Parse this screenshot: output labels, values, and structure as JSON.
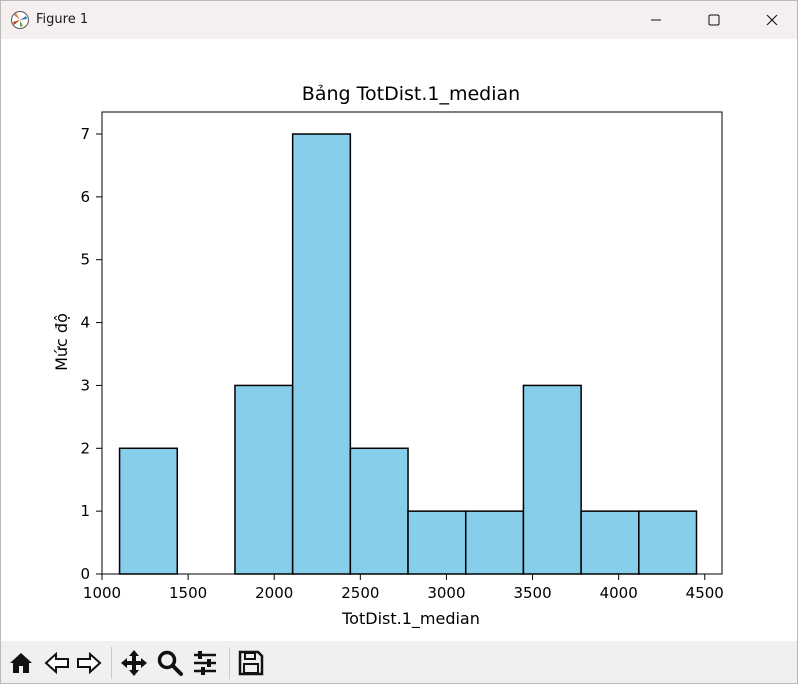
{
  "window": {
    "title": "Figure 1"
  },
  "colors": {
    "bar_fill": "#87ceeb",
    "bar_edge": "#000000",
    "titlebar_bg": "#f6eff0",
    "toolbar_bg": "#f0f0f0"
  },
  "toolbar": {
    "buttons": [
      {
        "name": "home-icon"
      },
      {
        "name": "back-arrow-icon"
      },
      {
        "name": "forward-arrow-icon"
      },
      {
        "name": "pan-move-icon"
      },
      {
        "name": "zoom-magnifier-icon"
      },
      {
        "name": "configure-subplots-icon"
      },
      {
        "name": "save-floppy-icon"
      }
    ]
  },
  "chart_data": {
    "type": "bar",
    "title": "Bảng TotDist.1_median",
    "xlabel": "TotDist.1_median",
    "ylabel": "Mức độ",
    "bin_edges": [
      1102,
      1437,
      1772,
      2107,
      2442,
      2777,
      3112,
      3447,
      3782,
      4117,
      4452
    ],
    "values": [
      2,
      0,
      3,
      7,
      2,
      1,
      1,
      3,
      1,
      1
    ],
    "xlim": [
      1000,
      4600
    ],
    "ylim": [
      0,
      7.35
    ],
    "xticks": [
      1000,
      1500,
      2000,
      2500,
      3000,
      3500,
      4000,
      4500
    ],
    "yticks": [
      0,
      1,
      2,
      3,
      4,
      5,
      6,
      7
    ],
    "grid": false,
    "legend": "none"
  }
}
